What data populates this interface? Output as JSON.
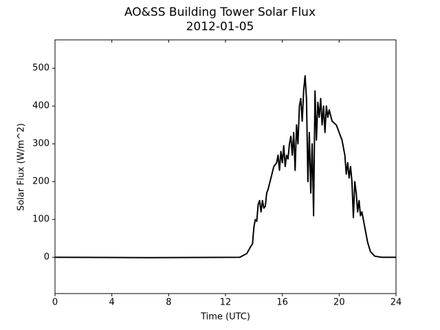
{
  "chart_data": {
    "type": "line",
    "title": "AO&SS Building Tower Solar Flux",
    "subtitle": "2012-01-05",
    "xlabel": "Time (UTC)",
    "ylabel": "Solar Flux (W/m^2)",
    "x": [
      0,
      6.5,
      13.0,
      13.5,
      13.8,
      13.9,
      14.0,
      14.1,
      14.2,
      14.3,
      14.4,
      14.5,
      14.6,
      14.7,
      14.8,
      14.9,
      15.0,
      15.2,
      15.4,
      15.6,
      15.7,
      15.8,
      15.9,
      16.0,
      16.1,
      16.2,
      16.3,
      16.4,
      16.5,
      16.6,
      16.7,
      16.8,
      16.9,
      17.0,
      17.1,
      17.2,
      17.3,
      17.4,
      17.5,
      17.6,
      17.7,
      17.8,
      17.9,
      18.0,
      18.1,
      18.2,
      18.3,
      18.4,
      18.5,
      18.6,
      18.7,
      18.8,
      18.9,
      19.0,
      19.1,
      19.2,
      19.3,
      19.5,
      19.8,
      20.0,
      20.2,
      20.4,
      20.5,
      20.6,
      20.7,
      20.8,
      20.9,
      21.0,
      21.1,
      21.2,
      21.3,
      21.4,
      21.5,
      21.6,
      21.8,
      22.0,
      22.2,
      22.5,
      23.0,
      24.0
    ],
    "series": [
      {
        "color": "#000000",
        "values": [
          0,
          -1,
          0,
          10,
          30,
          35,
          80,
          100,
          95,
          140,
          150,
          120,
          150,
          130,
          135,
          170,
          180,
          210,
          240,
          250,
          270,
          230,
          280,
          250,
          295,
          240,
          270,
          260,
          300,
          320,
          270,
          330,
          230,
          350,
          300,
          400,
          420,
          360,
          440,
          480,
          420,
          200,
          330,
          170,
          300,
          110,
          440,
          310,
          410,
          370,
          420,
          350,
          400,
          330,
          400,
          370,
          390,
          360,
          350,
          330,
          310,
          270,
          220,
          250,
          210,
          240,
          200,
          105,
          200,
          170,
          120,
          150,
          110,
          120,
          80,
          40,
          15,
          3,
          0,
          0
        ]
      }
    ],
    "xlim": [
      0,
      24
    ],
    "xticks": [
      0,
      4,
      8,
      12,
      16,
      20,
      24
    ],
    "ylim": [
      -96,
      575
    ],
    "yticks": [
      0,
      100,
      200,
      300,
      400,
      500
    ],
    "grid": false
  }
}
